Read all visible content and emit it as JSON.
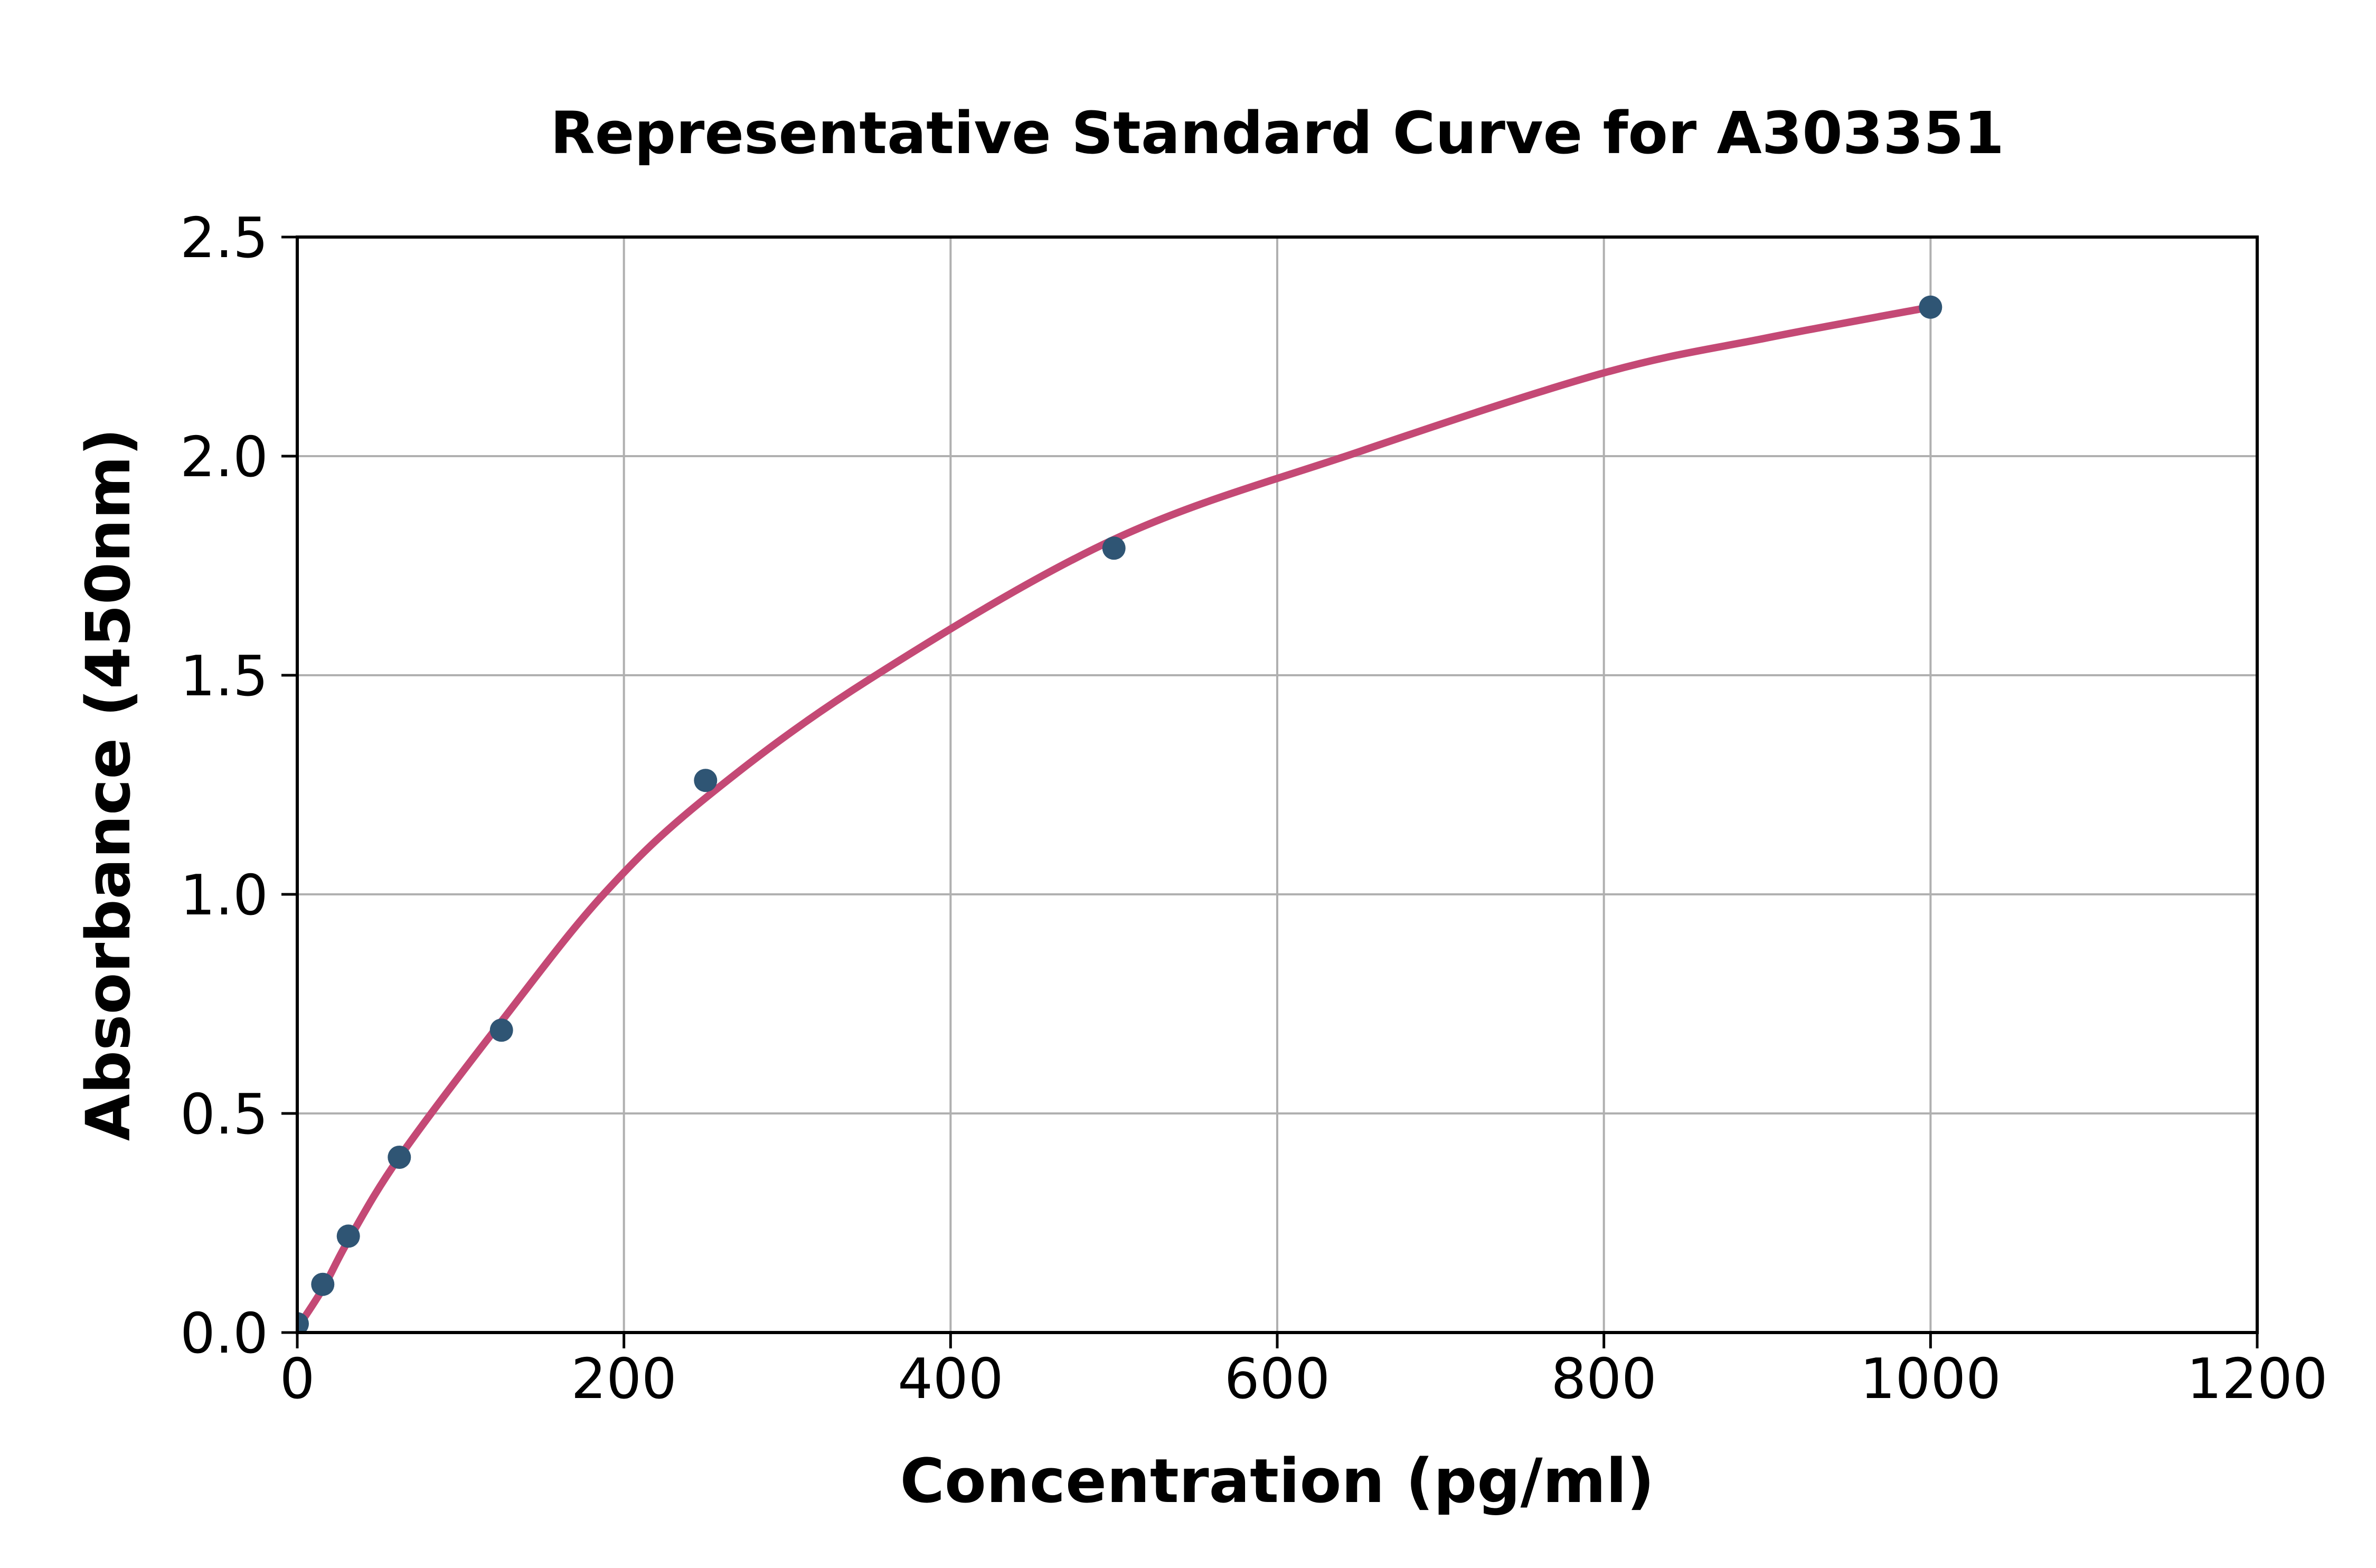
{
  "chart_data": {
    "type": "scatter",
    "title": "Representative Standard Curve for A303351",
    "xlabel": "Concentration (pg/ml)",
    "ylabel": "Absorbance (450nm)",
    "xlim": [
      0,
      1200
    ],
    "ylim": [
      0.0,
      2.5
    ],
    "x_ticks": [
      0,
      200,
      400,
      600,
      800,
      1000,
      1200
    ],
    "y_ticks": [
      "0.0",
      "0.5",
      "1.0",
      "1.5",
      "2.0",
      "2.5"
    ],
    "grid": true,
    "legend_position": "none",
    "series_name": "standards",
    "points": [
      {
        "x": 0,
        "y": 0.02
      },
      {
        "x": 15.6,
        "y": 0.11
      },
      {
        "x": 31.25,
        "y": 0.22
      },
      {
        "x": 62.5,
        "y": 0.4
      },
      {
        "x": 125,
        "y": 0.69
      },
      {
        "x": 250,
        "y": 1.26
      },
      {
        "x": 500,
        "y": 1.79
      },
      {
        "x": 1000,
        "y": 2.34
      }
    ],
    "fit_curve": {
      "description": "4PL-style saturation fit drawn from x=0 to x=1000",
      "samples": [
        {
          "x": 0,
          "y": 0.01
        },
        {
          "x": 15.6,
          "y": 0.1
        },
        {
          "x": 31.25,
          "y": 0.21
        },
        {
          "x": 62.5,
          "y": 0.4
        },
        {
          "x": 125,
          "y": 0.71
        },
        {
          "x": 187.5,
          "y": 1.0
        },
        {
          "x": 250,
          "y": 1.22
        },
        {
          "x": 350,
          "y": 1.49
        },
        {
          "x": 500,
          "y": 1.81
        },
        {
          "x": 650,
          "y": 2.01
        },
        {
          "x": 800,
          "y": 2.19
        },
        {
          "x": 900,
          "y": 2.27
        },
        {
          "x": 1000,
          "y": 2.34
        }
      ]
    },
    "colors": {
      "point": "#2F5574",
      "curve": "#C44975",
      "grid": "#B0B0B0",
      "axis": "#000000",
      "background": "#FFFFFF"
    }
  }
}
